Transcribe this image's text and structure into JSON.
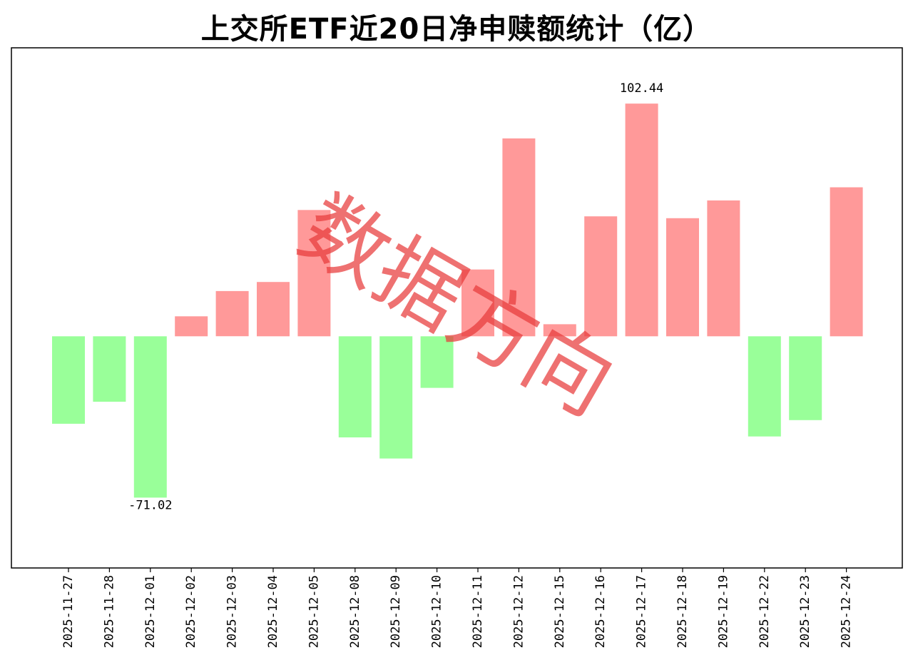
{
  "chart_data": {
    "type": "bar",
    "title": "上交所ETF近20日净申赎额统计（亿）",
    "xlabel": "",
    "ylabel": "",
    "categories": [
      "2025-11-27",
      "2025-11-28",
      "2025-12-01",
      "2025-12-02",
      "2025-12-03",
      "2025-12-04",
      "2025-12-05",
      "2025-12-08",
      "2025-12-09",
      "2025-12-10",
      "2025-12-11",
      "2025-12-12",
      "2025-12-15",
      "2025-12-16",
      "2025-12-17",
      "2025-12-18",
      "2025-12-19",
      "2025-12-22",
      "2025-12-23",
      "2025-12-24"
    ],
    "values": [
      -38.5,
      -28.8,
      -71.02,
      8.8,
      19.9,
      23.9,
      55.6,
      -44.5,
      -53.8,
      -22.7,
      29.4,
      87.1,
      5.3,
      52.8,
      102.44,
      52.0,
      59.8,
      -44.1,
      -36.9,
      65.6
    ],
    "ylim": [
      -102,
      127
    ],
    "grid": false,
    "legend": "none",
    "annotations": [
      {
        "index": 14,
        "text": "102.44"
      },
      {
        "index": 2,
        "text": "-71.02"
      }
    ],
    "colors": {
      "positive": "#ff9999",
      "negative": "#99ff99"
    }
  },
  "watermark": {
    "text": "数据方向",
    "color": "#e83a3a"
  }
}
